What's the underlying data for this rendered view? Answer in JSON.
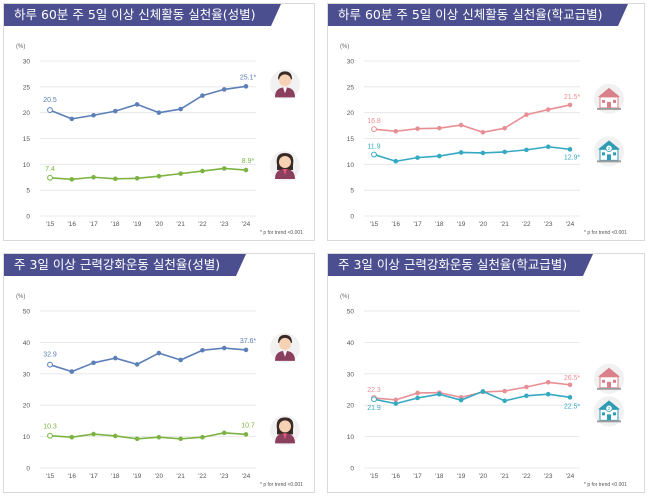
{
  "colors": {
    "title_bg": "#4b4f8f",
    "boys": "#5b7fb6",
    "girls": "#7cb342",
    "middle_school": "#e88f96",
    "high_school": "#35a9c2"
  },
  "icons": {
    "boy": "boy-student-icon",
    "girl": "girl-student-icon",
    "middle_school": "school-building-icon",
    "high_school": "school-building-2-icon"
  },
  "chart_data": [
    {
      "type": "line",
      "title": "하루 60분 주 5일 이상 신체활동 실천율(성별)",
      "ylabel": "(%)",
      "note": "* p for trend <0.001",
      "ylim": [
        0,
        30
      ],
      "yticks": [
        "0",
        "5",
        "10",
        "15",
        "20",
        "25",
        "30"
      ],
      "categories": [
        "'15",
        "'16",
        "'17",
        "'18",
        "'19",
        "'20",
        "'21",
        "'22",
        "'23",
        "'24"
      ],
      "grid": true,
      "series": [
        {
          "key": "boys",
          "values": [
            20.5,
            18.8,
            19.5,
            20.3,
            21.6,
            20.0,
            20.7,
            23.3,
            24.5,
            25.1
          ],
          "first_label": "20.5",
          "last_label": "25.1*"
        },
        {
          "key": "girls",
          "values": [
            7.4,
            7.1,
            7.5,
            7.2,
            7.3,
            7.7,
            8.2,
            8.7,
            9.2,
            8.9
          ],
          "first_label": "7.4",
          "last_label": "8.9*"
        }
      ]
    },
    {
      "type": "line",
      "title": "하루 60분 주 5일 이상 신체활동 실천율(학교급별)",
      "ylabel": "(%)",
      "note": "* p for trend <0.001",
      "ylim": [
        0,
        30
      ],
      "yticks": [
        "0",
        "5",
        "10",
        "15",
        "20",
        "25",
        "30"
      ],
      "categories": [
        "'15",
        "'16",
        "'17",
        "'18",
        "'19",
        "'20",
        "'21",
        "'22",
        "'23",
        "'24"
      ],
      "grid": true,
      "series": [
        {
          "key": "middle_school",
          "values": [
            16.8,
            16.4,
            16.9,
            17.0,
            17.6,
            16.2,
            17.0,
            19.6,
            20.6,
            21.5
          ],
          "first_label": "16.8",
          "last_label": "21.5*"
        },
        {
          "key": "high_school",
          "values": [
            11.9,
            10.6,
            11.3,
            11.6,
            12.3,
            12.2,
            12.4,
            12.8,
            13.4,
            12.9
          ],
          "first_label": "11.9",
          "last_label": "12.9*"
        }
      ]
    },
    {
      "type": "line",
      "title": "주 3일 이상 근력강화운동 실천율(성별)",
      "ylabel": "(%)",
      "note": "* p for trend <0.001",
      "ylim": [
        0,
        50
      ],
      "yticks": [
        "0",
        "10",
        "20",
        "30",
        "40",
        "50"
      ],
      "categories": [
        "'15",
        "'16",
        "'17",
        "'18",
        "'19",
        "'20",
        "'21",
        "'22",
        "'23",
        "'24"
      ],
      "grid": true,
      "series": [
        {
          "key": "boys",
          "values": [
            32.9,
            30.7,
            33.5,
            35.0,
            33.0,
            36.6,
            34.4,
            37.5,
            38.2,
            37.6
          ],
          "first_label": "32.9",
          "last_label": "37.6*"
        },
        {
          "key": "girls",
          "values": [
            10.3,
            9.8,
            10.8,
            10.2,
            9.3,
            9.8,
            9.3,
            9.8,
            11.2,
            10.7
          ],
          "first_label": "10.3",
          "last_label": "10.7"
        }
      ]
    },
    {
      "type": "line",
      "title": "주 3일 이상 근력강화운동 실천율(학교급별)",
      "ylabel": "(%)",
      "note": "* p for trend <0.001",
      "ylim": [
        0,
        50
      ],
      "yticks": [
        "0",
        "10",
        "20",
        "30",
        "40",
        "50"
      ],
      "categories": [
        "'15",
        "'16",
        "'17",
        "'18",
        "'19",
        "'20",
        "'21",
        "'22",
        "'23",
        "'24"
      ],
      "grid": true,
      "series": [
        {
          "key": "middle_school",
          "values": [
            22.3,
            21.7,
            23.9,
            24.0,
            22.5,
            24.2,
            24.5,
            25.8,
            27.3,
            26.5
          ],
          "first_label": "22.3",
          "last_label": "26.5*"
        },
        {
          "key": "high_school",
          "values": [
            21.9,
            20.5,
            22.3,
            23.5,
            21.6,
            24.4,
            21.4,
            23.0,
            23.5,
            22.5
          ],
          "first_label": "21.9",
          "last_label": "22.5*"
        }
      ]
    }
  ]
}
